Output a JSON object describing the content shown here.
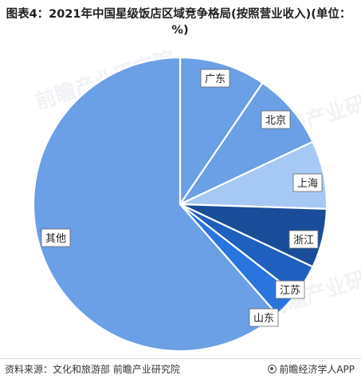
{
  "header": {
    "title": "图表4：2021年中国星级饭店区域竞争格局(按照营业收入)(单位：%)"
  },
  "watermark": {
    "text": "前瞻产业研究院"
  },
  "footer": {
    "source": "资料来源：文化和旅游部 前瞻产业研究院",
    "brand": "前瞻经济学人APP"
  },
  "colors": {
    "广东": "#6b9fe6",
    "北京": "#6b9fe6",
    "上海": "#a6c8f5",
    "浙江": "#1a4d99",
    "江苏": "#1f5fbf",
    "山东": "#2a74e0",
    "其他": "#6b9fe6"
  },
  "chart_data": {
    "type": "pie",
    "title": "2021年中国星级饭店区域竞争格局(按照营业收入)(单位：%)",
    "slices": [
      {
        "label": "广东",
        "value": 9.5
      },
      {
        "label": "北京",
        "value": 8.5
      },
      {
        "label": "上海",
        "value": 7.5
      },
      {
        "label": "浙江",
        "value": 6.5
      },
      {
        "label": "江苏",
        "value": 3.5
      },
      {
        "label": "山东",
        "value": 3.0
      },
      {
        "label": "其他",
        "value": 61.5
      }
    ],
    "start_angle_deg": 0,
    "direction": "clockwise",
    "data_labels_shown": false
  }
}
